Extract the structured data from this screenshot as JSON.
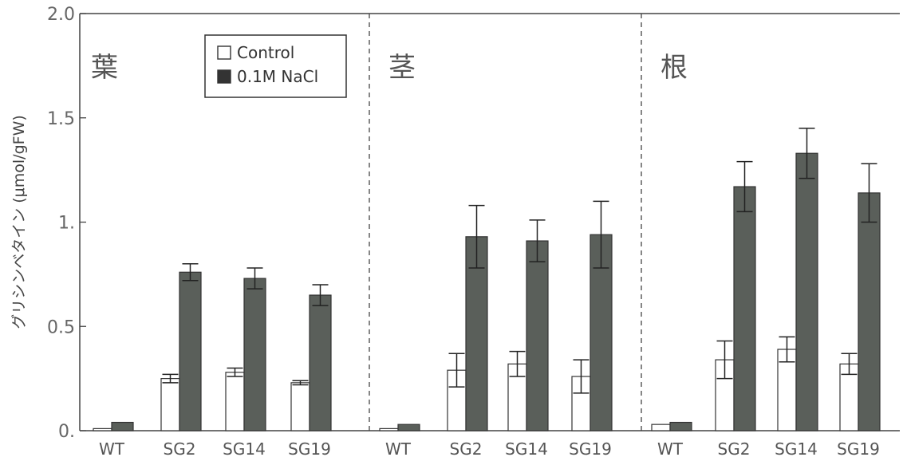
{
  "chart_data": {
    "type": "bar",
    "ylabel": "グリシンベタイン (μmol/gFW)",
    "ylim": [
      0,
      2.0
    ],
    "yticks": [
      "0.",
      "0.5",
      "1.",
      "1.5",
      "2.0"
    ],
    "ytick_values": [
      0,
      0.5,
      1.0,
      1.5,
      2.0
    ],
    "legend": {
      "position": "top-left of first panel",
      "items": [
        {
          "label": "Control",
          "color": "#ffffff"
        },
        {
          "label": "0.1M NaCl",
          "color": "#555a55"
        }
      ]
    },
    "series_colors": {
      "control": "#ffffff",
      "nacl": "#5a5f5a"
    },
    "panels": [
      {
        "label": "葉",
        "categories": [
          "WT",
          "SG2",
          "SG14",
          "SG19"
        ],
        "control": [
          0.01,
          0.25,
          0.28,
          0.23
        ],
        "control_err": [
          0.0,
          0.02,
          0.02,
          0.01
        ],
        "nacl": [
          0.04,
          0.76,
          0.73,
          0.65
        ],
        "nacl_err": [
          0.0,
          0.04,
          0.05,
          0.05
        ]
      },
      {
        "label": "茎",
        "categories": [
          "WT",
          "SG2",
          "SG14",
          "SG19"
        ],
        "control": [
          0.01,
          0.29,
          0.32,
          0.26
        ],
        "control_err": [
          0.0,
          0.08,
          0.06,
          0.08
        ],
        "nacl": [
          0.03,
          0.93,
          0.91,
          0.94
        ],
        "nacl_err": [
          0.0,
          0.15,
          0.1,
          0.16
        ]
      },
      {
        "label": "根",
        "categories": [
          "WT",
          "SG2",
          "SG14",
          "SG19"
        ],
        "control": [
          0.03,
          0.34,
          0.39,
          0.32
        ],
        "control_err": [
          0.0,
          0.09,
          0.06,
          0.05
        ],
        "nacl": [
          0.04,
          1.17,
          1.33,
          1.14
        ],
        "nacl_err": [
          0.0,
          0.12,
          0.12,
          0.14
        ]
      }
    ]
  }
}
